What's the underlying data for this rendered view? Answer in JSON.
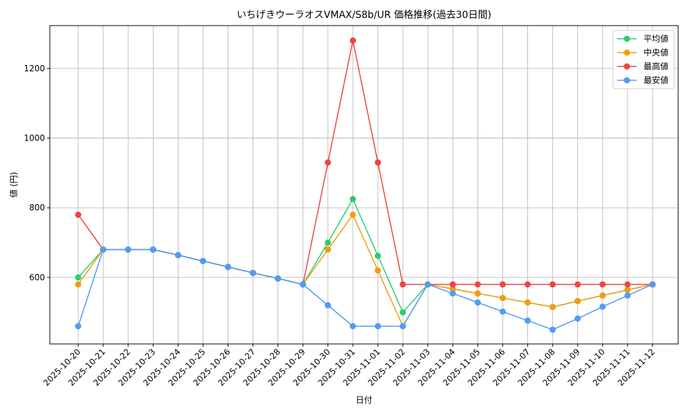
{
  "chart_data": {
    "type": "line",
    "title": "いちげきウーラオスVMAX/S8b/UR 価格推移(過去30日間)",
    "x_label": "日付",
    "y_label": "値 (円)",
    "categories": [
      "2025-10-20",
      "2025-10-21",
      "2025-10-22",
      "2025-10-23",
      "2025-10-24",
      "2025-10-25",
      "2025-10-26",
      "2025-10-27",
      "2025-10-28",
      "2025-10-29",
      "2025-10-30",
      "2025-10-31",
      "2025-11-01",
      "2025-11-02",
      "2025-11-03",
      "2025-11-04",
      "2025-11-05",
      "2025-11-06",
      "2025-11-07",
      "2025-11-08",
      "2025-11-09",
      "2025-11-10",
      "2025-11-11",
      "2025-11-12"
    ],
    "series": [
      {
        "name": "平均値",
        "color": "#2ecc71",
        "values": [
          600,
          680,
          680,
          680,
          664,
          647,
          630,
          613,
          597,
          580,
          700,
          825,
          662,
          500,
          580,
          567,
          554,
          541,
          528,
          515,
          532,
          548,
          564,
          580
        ]
      },
      {
        "name": "中央値",
        "color": "#f39c12",
        "values": [
          580,
          680,
          680,
          680,
          664,
          647,
          630,
          613,
          597,
          580,
          680,
          780,
          620,
          460,
          580,
          567,
          554,
          541,
          528,
          515,
          532,
          548,
          564,
          580
        ]
      },
      {
        "name": "最高値",
        "color": "#ef4444",
        "values": [
          780,
          680,
          680,
          680,
          664,
          647,
          630,
          613,
          597,
          580,
          930,
          1280,
          930,
          580,
          580,
          580,
          580,
          580,
          580,
          580,
          580,
          580,
          580,
          580
        ]
      },
      {
        "name": "最安値",
        "color": "#4f9cf5",
        "values": [
          460,
          680,
          680,
          680,
          664,
          647,
          630,
          613,
          597,
          580,
          520,
          460,
          460,
          460,
          580,
          554,
          528,
          502,
          476,
          450,
          482,
          516,
          548,
          580
        ]
      }
    ],
    "ylim": [
      409,
      1323
    ],
    "yticks": [
      600,
      800,
      1000,
      1200
    ],
    "grid": true,
    "legend": "upper right"
  }
}
